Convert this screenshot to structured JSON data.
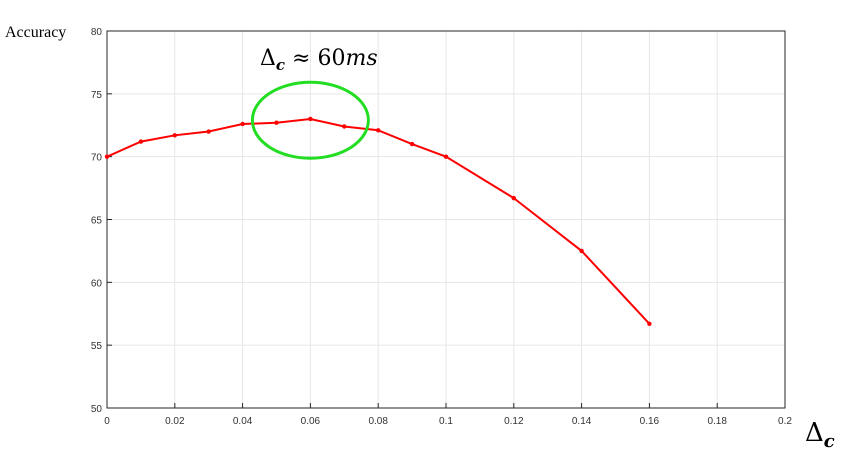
{
  "chart_data": {
    "type": "line",
    "ylabel": "Accuracy",
    "xlabel": {
      "main": "Δ",
      "sub": "c"
    },
    "xlim": [
      0,
      0.2
    ],
    "ylim": [
      50,
      80
    ],
    "xticks": [
      0,
      0.02,
      0.04,
      0.06,
      0.08,
      0.1,
      0.12,
      0.14,
      0.16,
      0.18,
      0.2
    ],
    "xtick_labels": [
      "0",
      "0.02",
      "0.04",
      "0.06",
      "0.08",
      "0.1",
      "0.12",
      "0.14",
      "0.16",
      "0.18",
      "0.2"
    ],
    "yticks": [
      50,
      55,
      60,
      65,
      70,
      75,
      80
    ],
    "ytick_labels": [
      "50",
      "55",
      "60",
      "65",
      "70",
      "75",
      "80"
    ],
    "grid": true,
    "series": [
      {
        "color": "#ff0000",
        "x": [
          0,
          0.01,
          0.02,
          0.03,
          0.04,
          0.05,
          0.06,
          0.07,
          0.08,
          0.09,
          0.1,
          0.12,
          0.14,
          0.16
        ],
        "y": [
          70.0,
          71.2,
          71.7,
          72.0,
          72.6,
          72.7,
          73.0,
          72.4,
          72.1,
          71.0,
          70.0,
          66.7,
          62.5,
          56.7
        ]
      }
    ],
    "annotation": {
      "text_main": "Δ",
      "text_sub": "c",
      "text_rest": " ≈ 60",
      "text_unit": "ms",
      "highlight_x": 0.06,
      "highlight_y": 72.9,
      "highlight_color": "#22dd22"
    }
  }
}
